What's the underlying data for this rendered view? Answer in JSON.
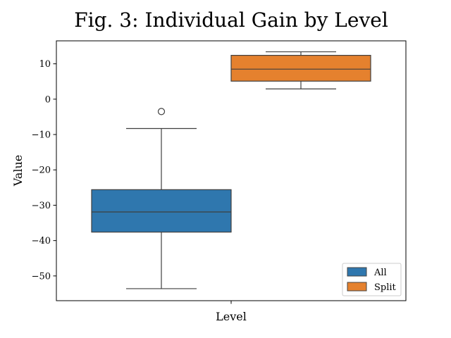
{
  "chart_data": {
    "type": "box",
    "title": "Fig. 3: Individual Gain by Level",
    "xlabel": "Level",
    "ylabel": "Value",
    "ylim": [
      -57,
      16.5
    ],
    "yticks": [
      10,
      0,
      -10,
      -20,
      -30,
      -40,
      -50
    ],
    "ytick_labels": [
      "10",
      "0",
      "−10",
      "−20",
      "−30",
      "−40",
      "−50"
    ],
    "series": [
      {
        "name": "All",
        "color": "#2f77ae",
        "stats": {
          "whisker_low": -53.6,
          "q1": -37.6,
          "median": -31.9,
          "q3": -25.6,
          "whisker_high": -8.3
        },
        "outliers": [
          -3.5
        ]
      },
      {
        "name": "Split",
        "color": "#e5812e",
        "stats": {
          "whisker_low": 2.9,
          "q1": 5.1,
          "median": 8.5,
          "q3": 12.4,
          "whisker_high": 13.4
        },
        "outliers": []
      }
    ],
    "legend": {
      "position": "lower-right",
      "entries": [
        "All",
        "Split"
      ]
    },
    "grid": false
  }
}
